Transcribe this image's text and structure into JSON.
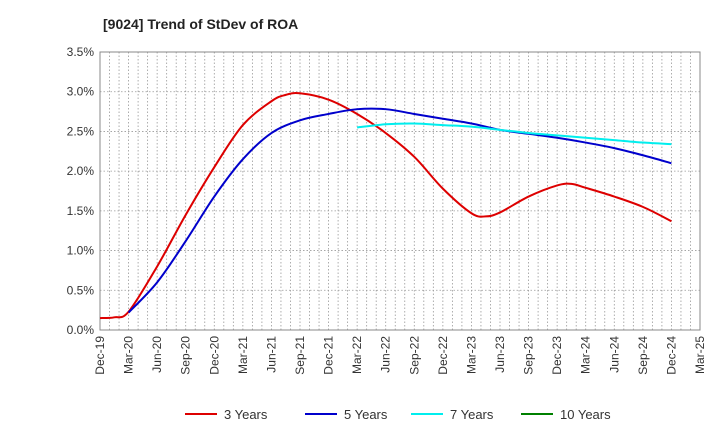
{
  "chart_data": {
    "type": "line",
    "title": "[9024]  Trend of StDev of ROA",
    "xlabel": "",
    "ylabel": "",
    "ylim": [
      0,
      3.5
    ],
    "yticks": [
      0,
      0.5,
      1.0,
      1.5,
      2.0,
      2.5,
      3.0,
      3.5
    ],
    "ytick_labels": [
      "0.0%",
      "0.5%",
      "1.0%",
      "1.5%",
      "2.0%",
      "2.5%",
      "3.0%",
      "3.5%"
    ],
    "xticks": [
      "Dec-19",
      "Mar-20",
      "Jun-20",
      "Sep-20",
      "Dec-20",
      "Mar-21",
      "Jun-21",
      "Sep-21",
      "Dec-21",
      "Mar-22",
      "Jun-22",
      "Sep-22",
      "Dec-22",
      "Mar-23",
      "Jun-23",
      "Sep-23",
      "Dec-23",
      "Mar-24",
      "Jun-24",
      "Sep-24",
      "Dec-24",
      "Mar-25"
    ],
    "grid": true,
    "legend_position": "bottom",
    "series": [
      {
        "name": "3 Years",
        "color": "#dd0000",
        "points": [
          [
            0,
            0.15
          ],
          [
            0.5,
            0.16
          ],
          [
            1,
            0.23
          ],
          [
            2,
            0.8
          ],
          [
            3,
            1.45
          ],
          [
            4,
            2.05
          ],
          [
            5,
            2.58
          ],
          [
            6,
            2.88
          ],
          [
            6.5,
            2.96
          ],
          [
            7,
            2.98
          ],
          [
            8,
            2.9
          ],
          [
            9,
            2.72
          ],
          [
            10,
            2.48
          ],
          [
            11,
            2.18
          ],
          [
            12,
            1.78
          ],
          [
            13,
            1.47
          ],
          [
            13.5,
            1.43
          ],
          [
            14,
            1.48
          ],
          [
            15,
            1.68
          ],
          [
            16,
            1.82
          ],
          [
            16.5,
            1.84
          ],
          [
            17,
            1.79
          ],
          [
            18,
            1.68
          ],
          [
            19,
            1.55
          ],
          [
            20,
            1.37
          ]
        ]
      },
      {
        "name": "5 Years",
        "color": "#0000cc",
        "points": [
          [
            1,
            0.22
          ],
          [
            2,
            0.6
          ],
          [
            3,
            1.12
          ],
          [
            4,
            1.68
          ],
          [
            5,
            2.15
          ],
          [
            6,
            2.48
          ],
          [
            7,
            2.64
          ],
          [
            8,
            2.72
          ],
          [
            9,
            2.78
          ],
          [
            10,
            2.78
          ],
          [
            11,
            2.72
          ],
          [
            12,
            2.66
          ],
          [
            13,
            2.6
          ],
          [
            14,
            2.52
          ],
          [
            15,
            2.47
          ],
          [
            16,
            2.42
          ],
          [
            17,
            2.36
          ],
          [
            18,
            2.29
          ],
          [
            19,
            2.2
          ],
          [
            20,
            2.1
          ]
        ]
      },
      {
        "name": "7 Years",
        "color": "#00eeee",
        "points": [
          [
            9,
            2.55
          ],
          [
            10,
            2.59
          ],
          [
            11,
            2.6
          ],
          [
            12,
            2.58
          ],
          [
            13,
            2.56
          ],
          [
            14,
            2.52
          ],
          [
            15,
            2.48
          ],
          [
            16,
            2.45
          ],
          [
            17,
            2.42
          ],
          [
            18,
            2.39
          ],
          [
            19,
            2.36
          ],
          [
            20,
            2.34
          ]
        ]
      },
      {
        "name": "10 Years",
        "color": "#008000",
        "points": []
      }
    ]
  }
}
